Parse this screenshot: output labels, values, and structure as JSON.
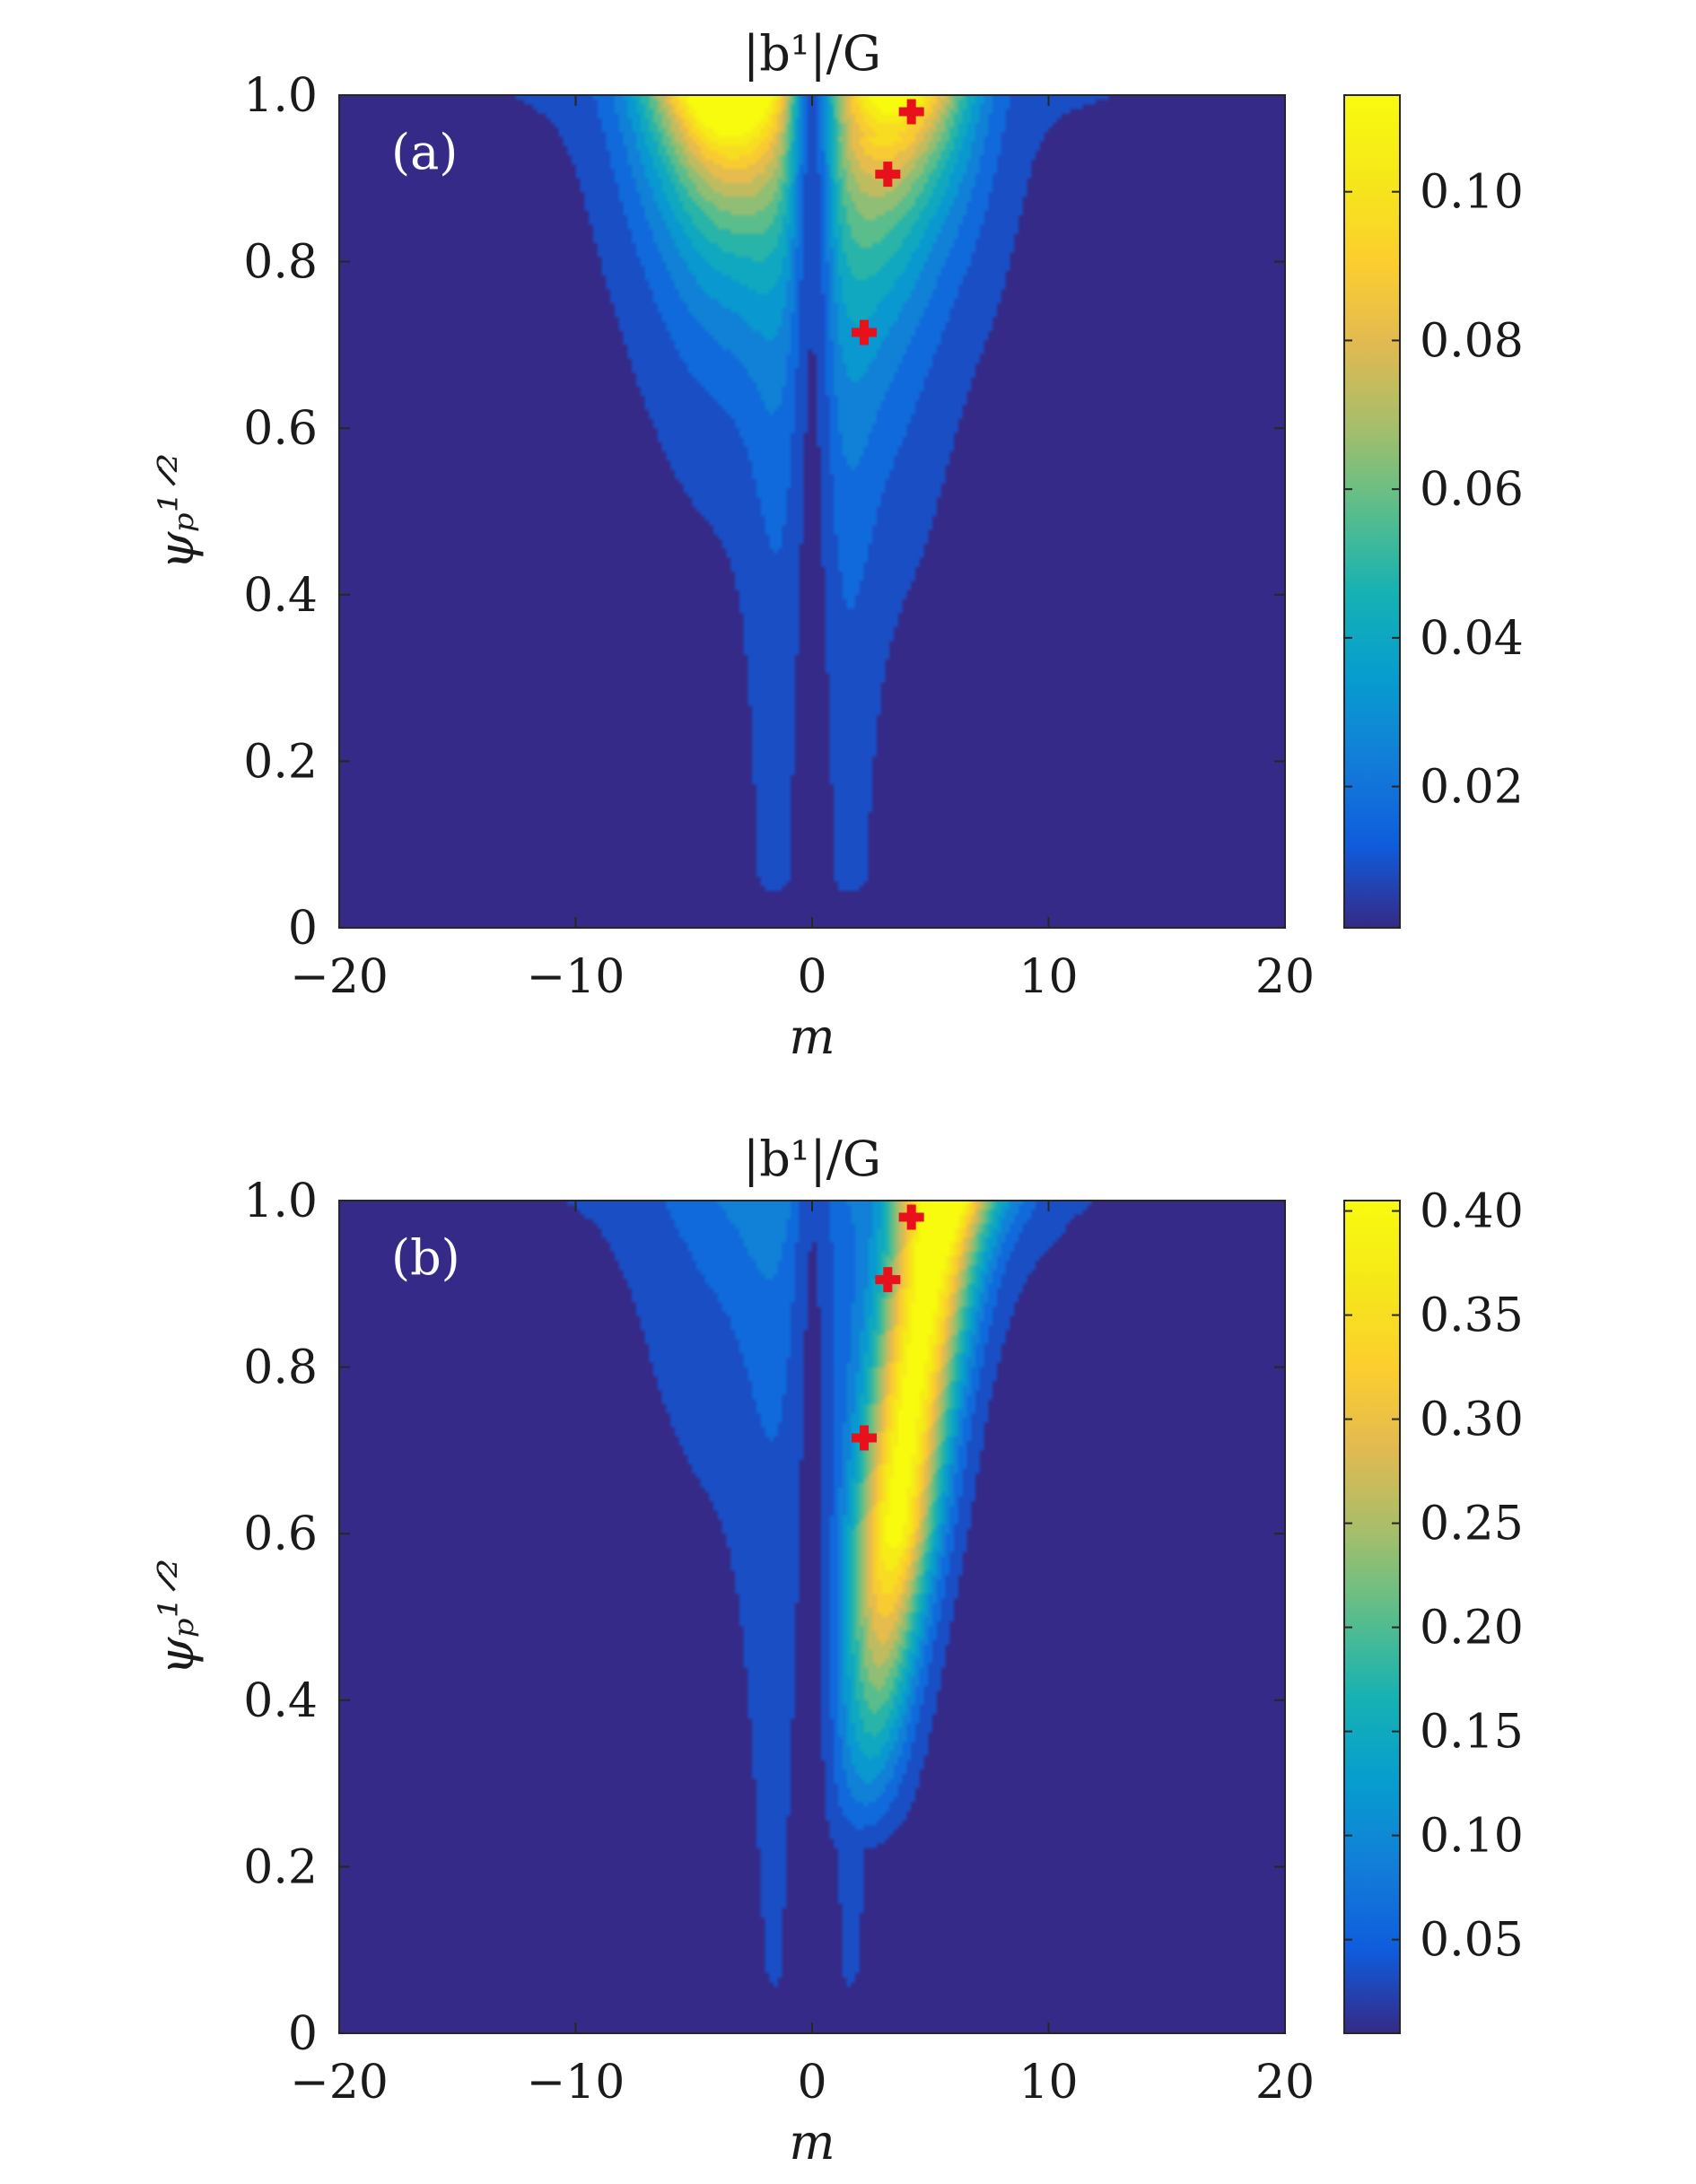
{
  "chart_data": [
    {
      "type": "heatmap",
      "panel_label": "(a)",
      "title": "|b¹|/G",
      "xlabel": "m",
      "ylabel": "ψₚ¹ᐟ²",
      "xlim": [
        -20,
        20
      ],
      "ylim": [
        0,
        1.0
      ],
      "x_ticks": [
        -20,
        -10,
        0,
        10,
        20
      ],
      "x_tick_labels": [
        "−20",
        "−10",
        "0",
        "10",
        "20"
      ],
      "y_ticks": [
        0,
        0.2,
        0.4,
        0.6,
        0.8,
        1.0
      ],
      "y_tick_labels": [
        "0",
        "0.2",
        "0.4",
        "0.6",
        "0.8",
        "1.0"
      ],
      "colorbar": {
        "range": [
          0.001,
          0.113
        ],
        "ticks": [
          0.02,
          0.04,
          0.06,
          0.08,
          0.1
        ],
        "tick_labels": [
          "0.02",
          "0.04",
          "0.06",
          "0.08",
          "0.10"
        ],
        "colormap": "parula"
      },
      "peak": {
        "m": -4,
        "psi": 0.96,
        "value": 0.11
      },
      "markers": {
        "symbol": "plus",
        "color": "#e8101a",
        "points": [
          {
            "m": 4.2,
            "psi": 0.98
          },
          {
            "m": 3.2,
            "psi": 0.905
          },
          {
            "m": 2.2,
            "psi": 0.715
          }
        ]
      }
    },
    {
      "type": "heatmap",
      "panel_label": "(b)",
      "title": "|b¹|/G",
      "xlabel": "m",
      "ylabel": "ψₚ¹ᐟ²",
      "xlim": [
        -20,
        20
      ],
      "ylim": [
        0,
        1.0
      ],
      "x_ticks": [
        -20,
        -10,
        0,
        10,
        20
      ],
      "x_tick_labels": [
        "−20",
        "−10",
        "0",
        "10",
        "20"
      ],
      "y_ticks": [
        0,
        0.2,
        0.4,
        0.6,
        0.8,
        1.0
      ],
      "y_tick_labels": [
        "0",
        "0.2",
        "0.4",
        "0.6",
        "0.8",
        "1.0"
      ],
      "colorbar": {
        "range": [
          0.005,
          0.405
        ],
        "ticks": [
          0.05,
          0.1,
          0.15,
          0.2,
          0.25,
          0.3,
          0.35,
          0.4
        ],
        "tick_labels": [
          "0.05",
          "0.10",
          "0.15",
          "0.20",
          "0.25",
          "0.30",
          "0.35",
          "0.40"
        ],
        "colormap": "parula"
      },
      "peak": {
        "m": 4.5,
        "psi": 0.85,
        "value": 0.4
      },
      "markers": {
        "symbol": "plus",
        "color": "#e8101a",
        "points": [
          {
            "m": 4.2,
            "psi": 0.98
          },
          {
            "m": 3.2,
            "psi": 0.905
          },
          {
            "m": 2.2,
            "psi": 0.715
          }
        ]
      }
    }
  ]
}
